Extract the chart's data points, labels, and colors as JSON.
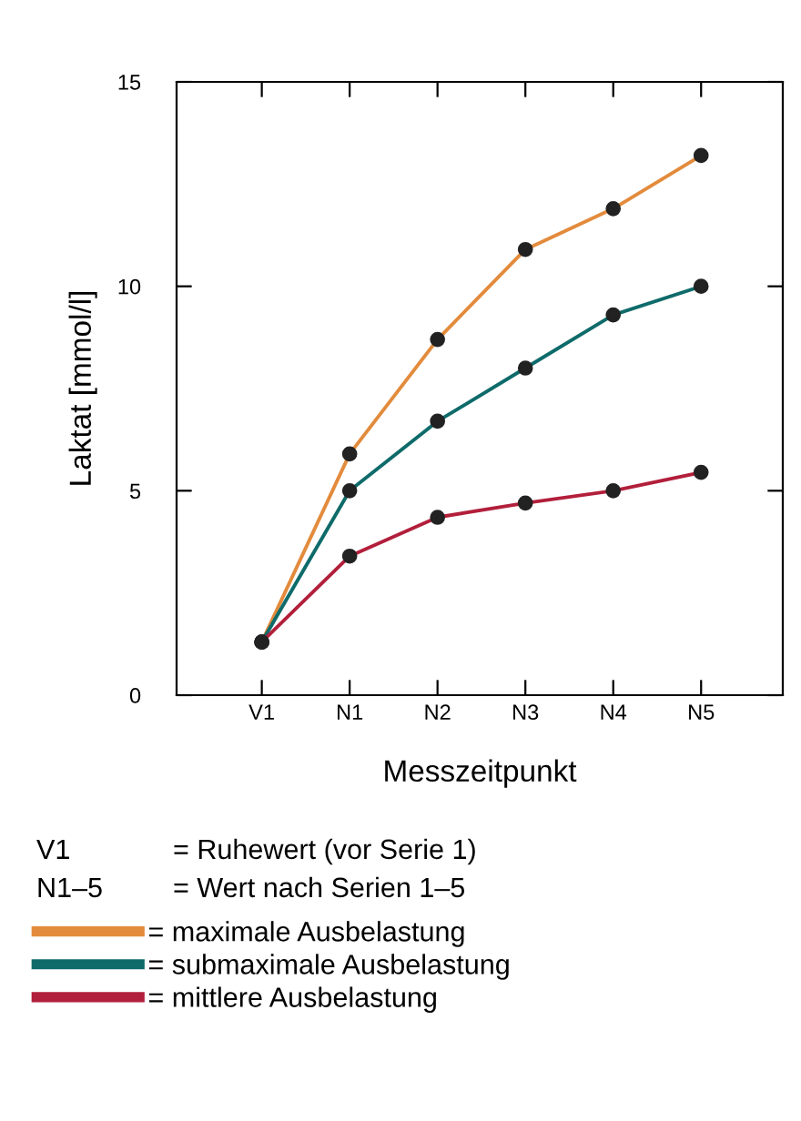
{
  "chart_data": {
    "type": "line",
    "xlabel": "Messzeitpunkt",
    "ylabel": "Laktat [mmol/l]",
    "categories": [
      "V1",
      "N1",
      "N2",
      "N3",
      "N4",
      "N5"
    ],
    "series": [
      {
        "name": "= maximale Ausbelastung",
        "color": "#e38b3c",
        "values": [
          1.3,
          5.9,
          8.7,
          10.9,
          11.9,
          13.2
        ]
      },
      {
        "name": "= submaximale Ausbelastung",
        "color": "#0e6b6a",
        "values": [
          1.3,
          5.0,
          6.7,
          8.0,
          9.3,
          10.0
        ]
      },
      {
        "name": "= mittlere Ausbelastung",
        "color": "#b21f3b",
        "values": [
          1.3,
          3.4,
          4.35,
          4.7,
          5.0,
          5.45
        ]
      }
    ],
    "ylim": [
      0,
      15
    ],
    "yticks": [
      0,
      5,
      10,
      15
    ],
    "grid": false,
    "marker": "circle",
    "line_style": "solid",
    "legend": "bottom",
    "annotations": [
      "V1",
      "= Ruhewert (vor Serie 1)",
      "N1–5",
      "= Wert nach Serien 1–5"
    ]
  }
}
